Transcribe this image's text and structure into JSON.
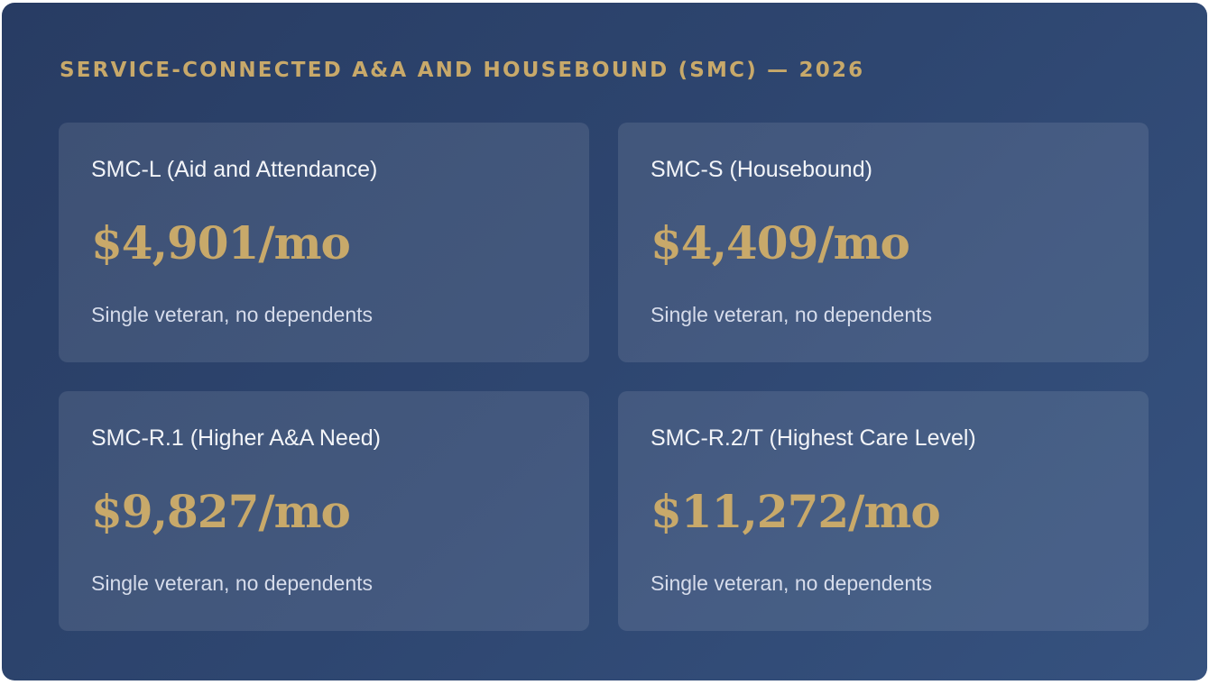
{
  "heading": "SERVICE-CONNECTED A&A AND HOUSEBOUND (SMC) — 2026",
  "cards": [
    {
      "title": "SMC-L (Aid and Attendance)",
      "amount": "$4,901/mo",
      "note": "Single veteran, no dependents"
    },
    {
      "title": "SMC-S (Housebound)",
      "amount": "$4,409/mo",
      "note": "Single veteran, no dependents"
    },
    {
      "title": "SMC-R.1 (Higher A&A Need)",
      "amount": "$9,827/mo",
      "note": "Single veteran, no dependents"
    },
    {
      "title": "SMC-R.2/T (Highest Care Level)",
      "amount": "$11,272/mo",
      "note": "Single veteran, no dependents"
    }
  ],
  "colors": {
    "accent": "#c8a96a",
    "panel_start": "#283c63",
    "panel_end": "#36527f"
  }
}
